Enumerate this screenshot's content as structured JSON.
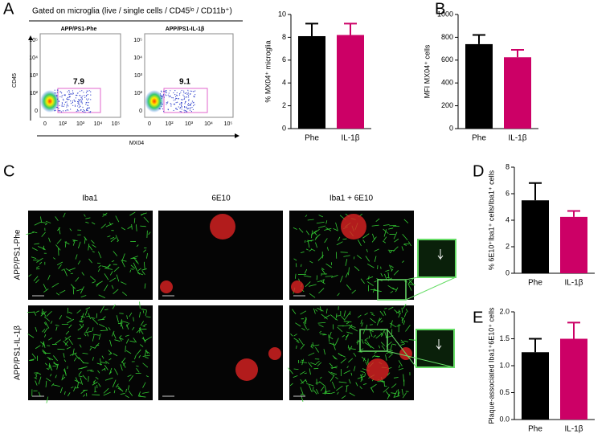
{
  "panel_labels": [
    "A",
    "B",
    "C",
    "D",
    "E"
  ],
  "flow": {
    "header": "Gated on microglia (live / single cells / CD45ˡᵒ / CD11b⁺)",
    "ylabel": "CD45",
    "xlabel": "MX04",
    "yticks": [
      "10⁵",
      "10⁴",
      "10³",
      "10²",
      "0"
    ],
    "xticks": [
      "0",
      "10²",
      "10³",
      "10⁴",
      "10⁵"
    ],
    "plots": [
      {
        "title": "APP/PS1-Phe",
        "gate": 7.9
      },
      {
        "title": "APP/PS1-IL-1β",
        "gate": 9.1
      }
    ]
  },
  "microscopy": {
    "columns": [
      "Iba1",
      "6E10",
      "Iba1 + 6E10"
    ],
    "rows": [
      "APP/PS1-Phe",
      "APP/PS1-IL-1β"
    ]
  },
  "chart_data": [
    {
      "type": "bar",
      "ylabel": "% MX04⁺ microglia",
      "categories": [
        "Phe",
        "IL-1β"
      ],
      "values": [
        8.1,
        8.2
      ],
      "errors": [
        1.1,
        1.0
      ],
      "colors": [
        "#000000",
        "#cc0066"
      ],
      "ylim": [
        0,
        10
      ],
      "yticks": [
        0,
        2,
        4,
        6,
        8,
        10
      ]
    },
    {
      "type": "bar",
      "ylabel": "MFI MX04⁺ cells",
      "categories": [
        "Phe",
        "IL-1β"
      ],
      "values": [
        740,
        625
      ],
      "errors": [
        80,
        65
      ],
      "colors": [
        "#000000",
        "#cc0066"
      ],
      "ylim": [
        0,
        1000
      ],
      "yticks": [
        0,
        200,
        400,
        600,
        800,
        1000
      ]
    },
    {
      "type": "bar",
      "ylabel": "% 6E10⁺Iba1⁺ cells/Iba1⁺ cells",
      "categories": [
        "Phe",
        "IL-1β"
      ],
      "values": [
        5.5,
        4.25
      ],
      "errors": [
        1.3,
        0.45
      ],
      "colors": [
        "#000000",
        "#cc0066"
      ],
      "ylim": [
        0,
        8
      ],
      "yticks": [
        0,
        2,
        4,
        6,
        8
      ]
    },
    {
      "type": "bar",
      "ylabel": "Plaque-associated Iba1⁺6E10⁺ cells",
      "categories": [
        "Phe",
        "IL-1β"
      ],
      "values": [
        1.25,
        1.5
      ],
      "errors": [
        0.25,
        0.3
      ],
      "colors": [
        "#000000",
        "#cc0066"
      ],
      "ylim": [
        0,
        2
      ],
      "yticks": [
        {
          "value": 0,
          "label": "0.0"
        },
        {
          "value": 0.5,
          "label": "0.5"
        },
        {
          "value": 1,
          "label": "1.0"
        },
        {
          "value": 1.5,
          "label": "1.5"
        },
        {
          "value": 2,
          "label": "2.0"
        }
      ]
    }
  ]
}
